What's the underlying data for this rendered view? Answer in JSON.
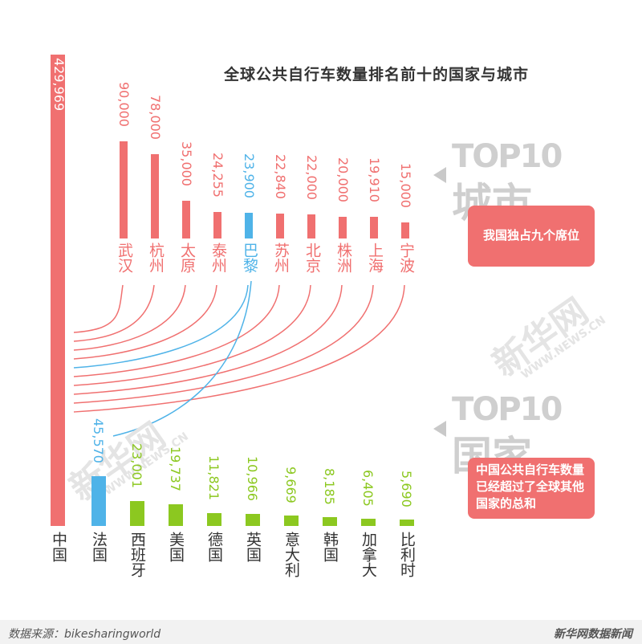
{
  "colors": {
    "red": "#f07070",
    "blue": "#4fb3e8",
    "green": "#8cc820",
    "gray": "#cfcfcf"
  },
  "chart_data": {
    "type": "bar",
    "title": "全球公共自行车数量排名前十的国家与城市",
    "china": {
      "name": "中国",
      "value": 429969,
      "value_label": "429,969"
    },
    "cities": [
      {
        "name": "武汉",
        "value": 90000,
        "value_label": "90,000"
      },
      {
        "name": "杭州",
        "value": 78000,
        "value_label": "78,000"
      },
      {
        "name": "太原",
        "value": 35000,
        "value_label": "35,000"
      },
      {
        "name": "泰州",
        "value": 24255,
        "value_label": "24,255"
      },
      {
        "name": "巴黎",
        "value": 23900,
        "value_label": "23,900"
      },
      {
        "name": "苏州",
        "value": 22840,
        "value_label": "22,840"
      },
      {
        "name": "北京",
        "value": 22000,
        "value_label": "22,000"
      },
      {
        "name": "株洲",
        "value": 20000,
        "value_label": "20,000"
      },
      {
        "name": "上海",
        "value": 19910,
        "value_label": "19,910"
      },
      {
        "name": "宁波",
        "value": 15000,
        "value_label": "15,000"
      }
    ],
    "countries": [
      {
        "name": "法国",
        "value": 45570,
        "value_label": "45,570"
      },
      {
        "name": "西班牙",
        "value": 23001,
        "value_label": "23,001"
      },
      {
        "name": "美国",
        "value": 19737,
        "value_label": "19,737"
      },
      {
        "name": "德国",
        "value": 11821,
        "value_label": "11,821"
      },
      {
        "name": "英国",
        "value": 10966,
        "value_label": "10,966"
      },
      {
        "name": "意大利",
        "value": 9669,
        "value_label": "9,669"
      },
      {
        "name": "韩国",
        "value": 8185,
        "value_label": "8,185"
      },
      {
        "name": "加拿大",
        "value": 6405,
        "value_label": "6,405"
      },
      {
        "name": "比利时",
        "value": 5690,
        "value_label": "5,690"
      }
    ]
  },
  "callouts": {
    "top10_word": "TOP10",
    "city_char": "城市",
    "country_char": "国家",
    "city_note": "我国独占九个席位",
    "country_note": "中国公共自行车数量已经超过了全球其他国家的总和"
  },
  "watermark": {
    "brand": "新华网",
    "url": "WWW.NEWS.CN"
  },
  "footer": {
    "source": "数据来源：bikesharingworld",
    "brand": "新华网数据新闻"
  }
}
